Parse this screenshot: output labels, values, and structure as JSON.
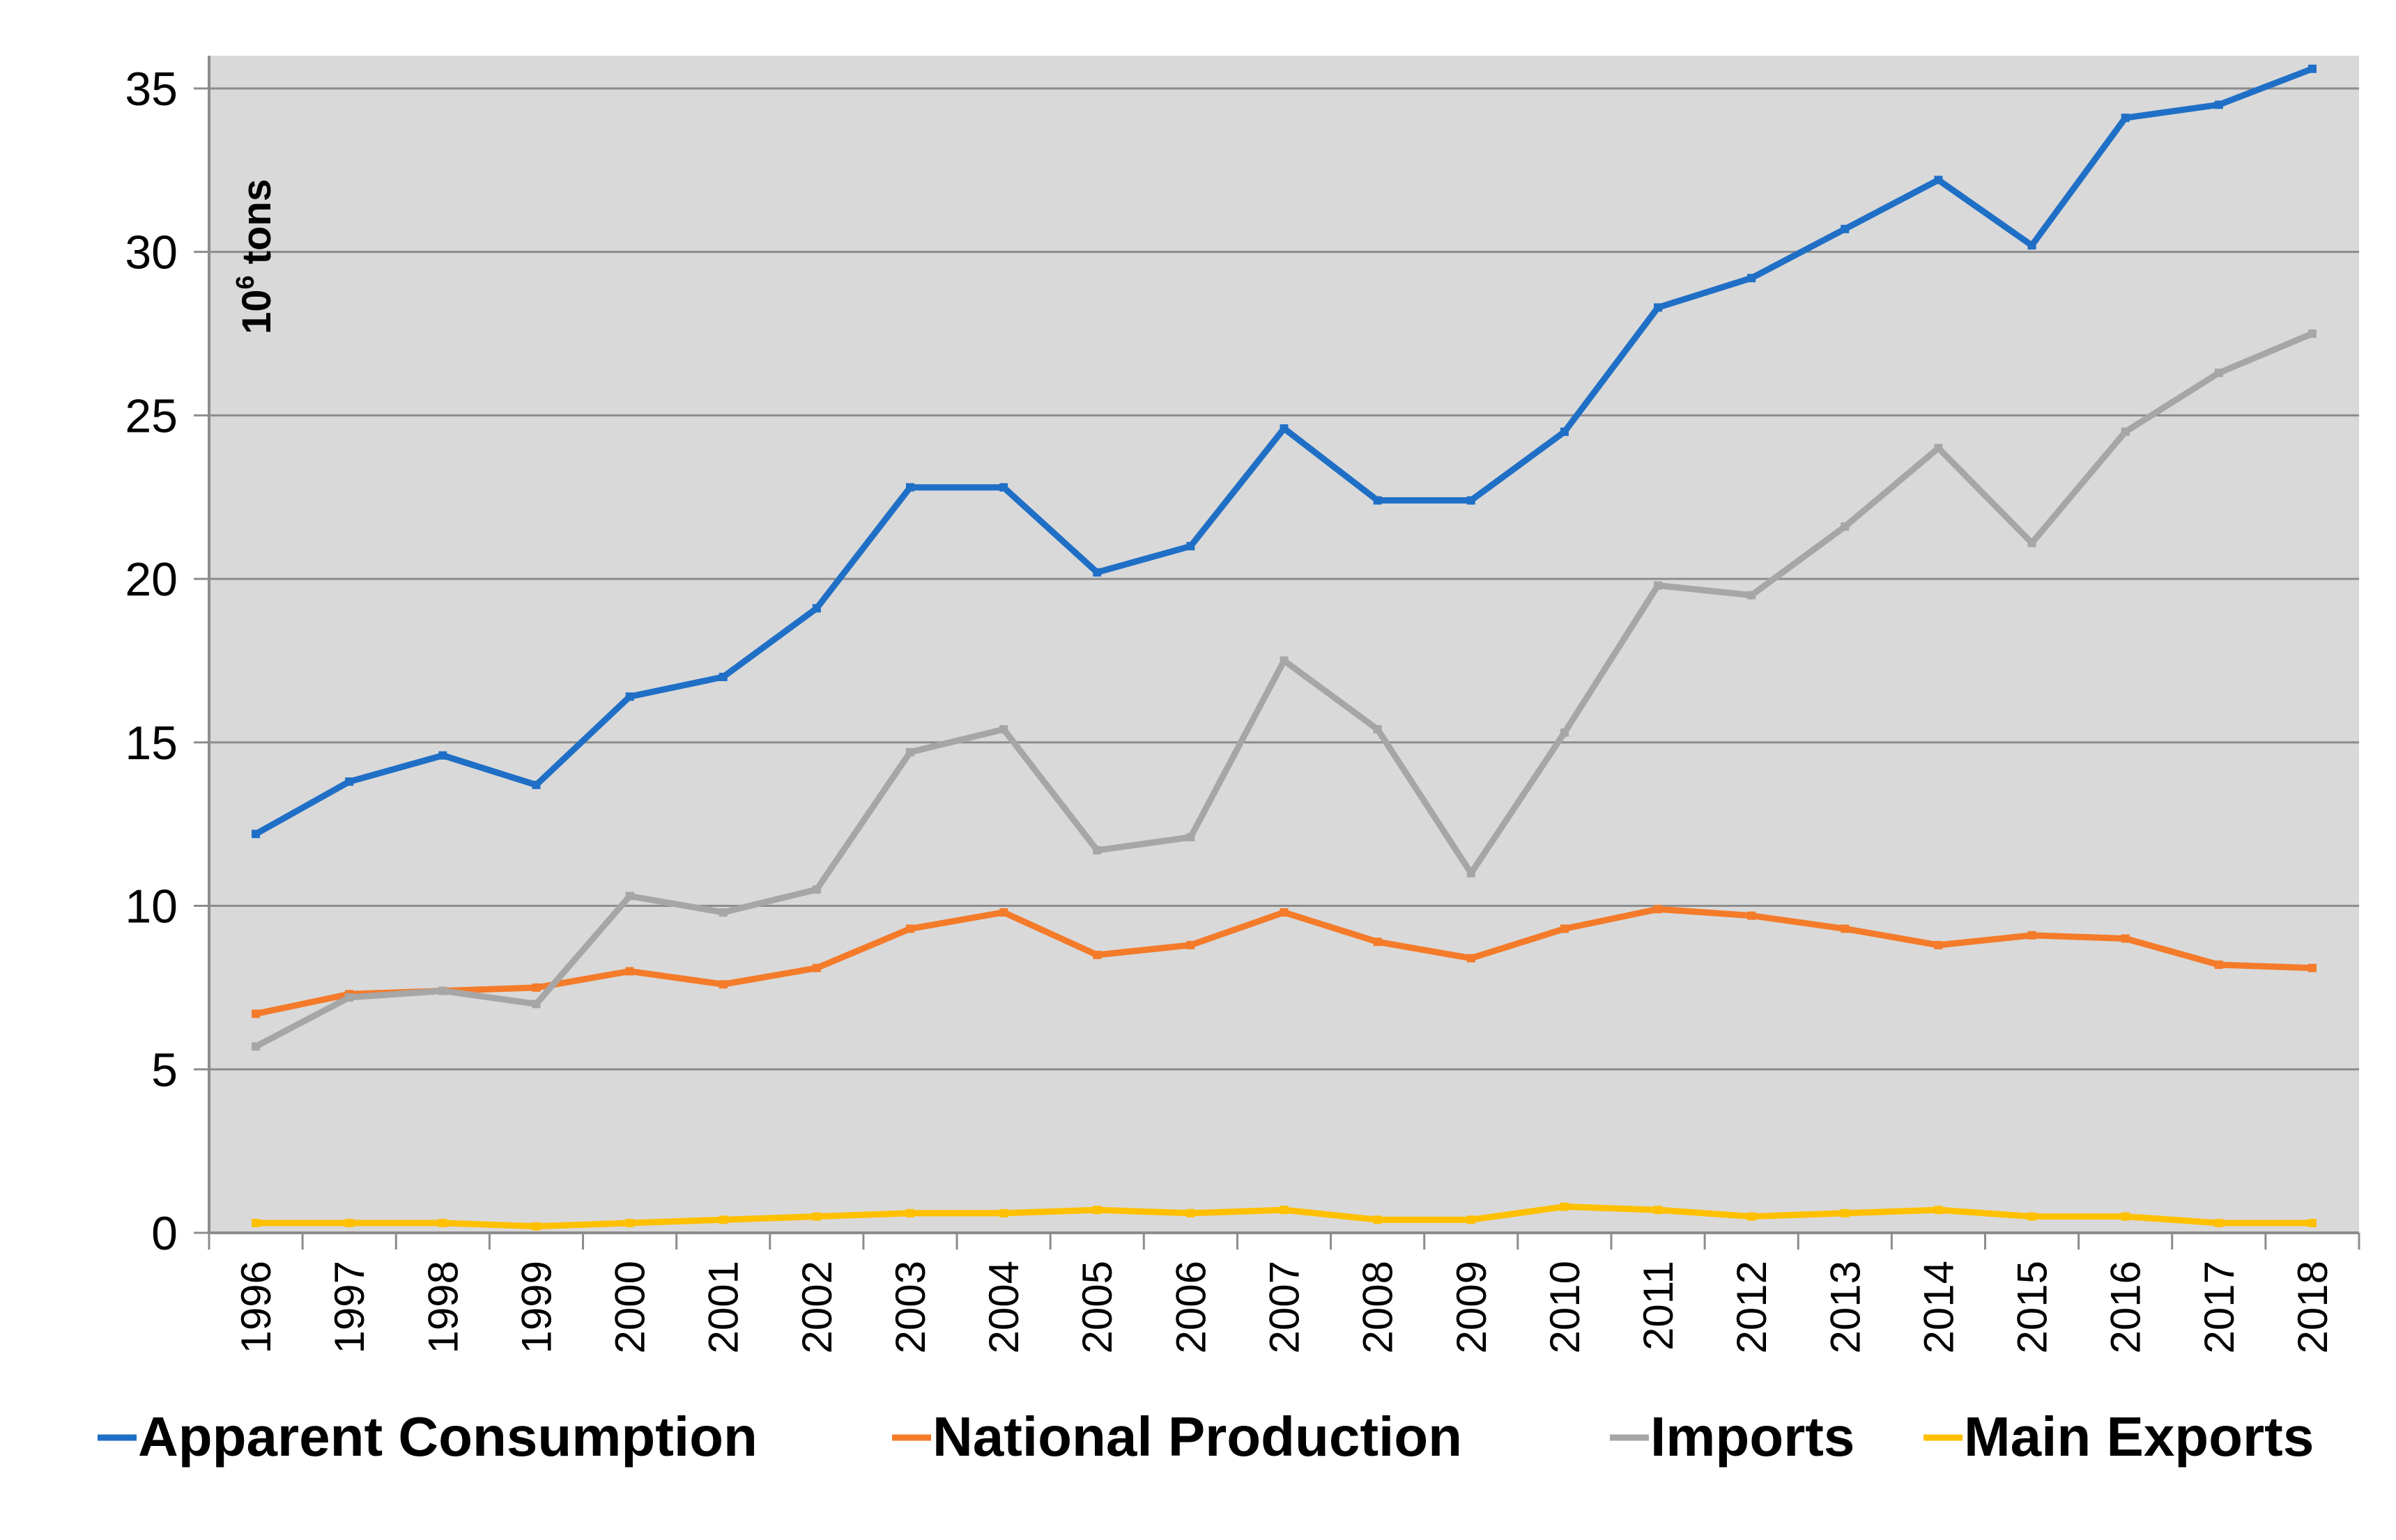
{
  "chart_data": {
    "type": "line",
    "title": "",
    "xlabel": "",
    "ylabel_base": "10",
    "ylabel_sup": "6",
    "ylabel_rest": " tons",
    "ylim": [
      0,
      36
    ],
    "yticks": [
      0,
      5,
      10,
      15,
      20,
      25,
      30,
      35
    ],
    "grid": true,
    "legend_position": "bottom",
    "categories": [
      "1996",
      "1997",
      "1998",
      "1999",
      "2000",
      "2001",
      "2002",
      "2003",
      "2004",
      "2005",
      "2006",
      "2007",
      "2008",
      "2009",
      "2010",
      "2011",
      "2012",
      "2013",
      "2014",
      "2015",
      "2016",
      "2017",
      "2018"
    ],
    "series": [
      {
        "name": "Apparent Consumption",
        "color": "#1F6FC6",
        "values": [
          12.2,
          13.8,
          14.6,
          13.7,
          16.4,
          17.0,
          19.1,
          22.8,
          22.8,
          20.2,
          21.0,
          24.6,
          22.4,
          22.4,
          24.5,
          28.3,
          29.2,
          30.7,
          32.2,
          30.2,
          34.1,
          34.5,
          35.6
        ]
      },
      {
        "name": "National  Production",
        "color": "#F47B2A",
        "values": [
          6.7,
          7.3,
          7.4,
          7.5,
          8.0,
          7.6,
          8.1,
          9.3,
          9.8,
          8.5,
          8.8,
          9.8,
          8.9,
          8.4,
          9.3,
          9.9,
          9.7,
          9.3,
          8.8,
          9.1,
          9.0,
          8.2,
          8.1
        ]
      },
      {
        "name": "Imports",
        "color": "#A6A6A6",
        "values": [
          5.7,
          7.2,
          7.4,
          7.0,
          10.3,
          9.8,
          10.5,
          14.7,
          15.4,
          11.7,
          12.1,
          17.5,
          15.4,
          11.0,
          15.3,
          19.8,
          19.5,
          21.6,
          24.0,
          21.1,
          24.5,
          26.3,
          27.5
        ]
      },
      {
        "name": "Main Exports",
        "color": "#FFC000",
        "values": [
          0.3,
          0.3,
          0.3,
          0.2,
          0.3,
          0.4,
          0.5,
          0.6,
          0.6,
          0.7,
          0.6,
          0.7,
          0.4,
          0.4,
          0.8,
          0.7,
          0.5,
          0.6,
          0.7,
          0.5,
          0.5,
          0.3,
          0.3
        ]
      }
    ]
  }
}
